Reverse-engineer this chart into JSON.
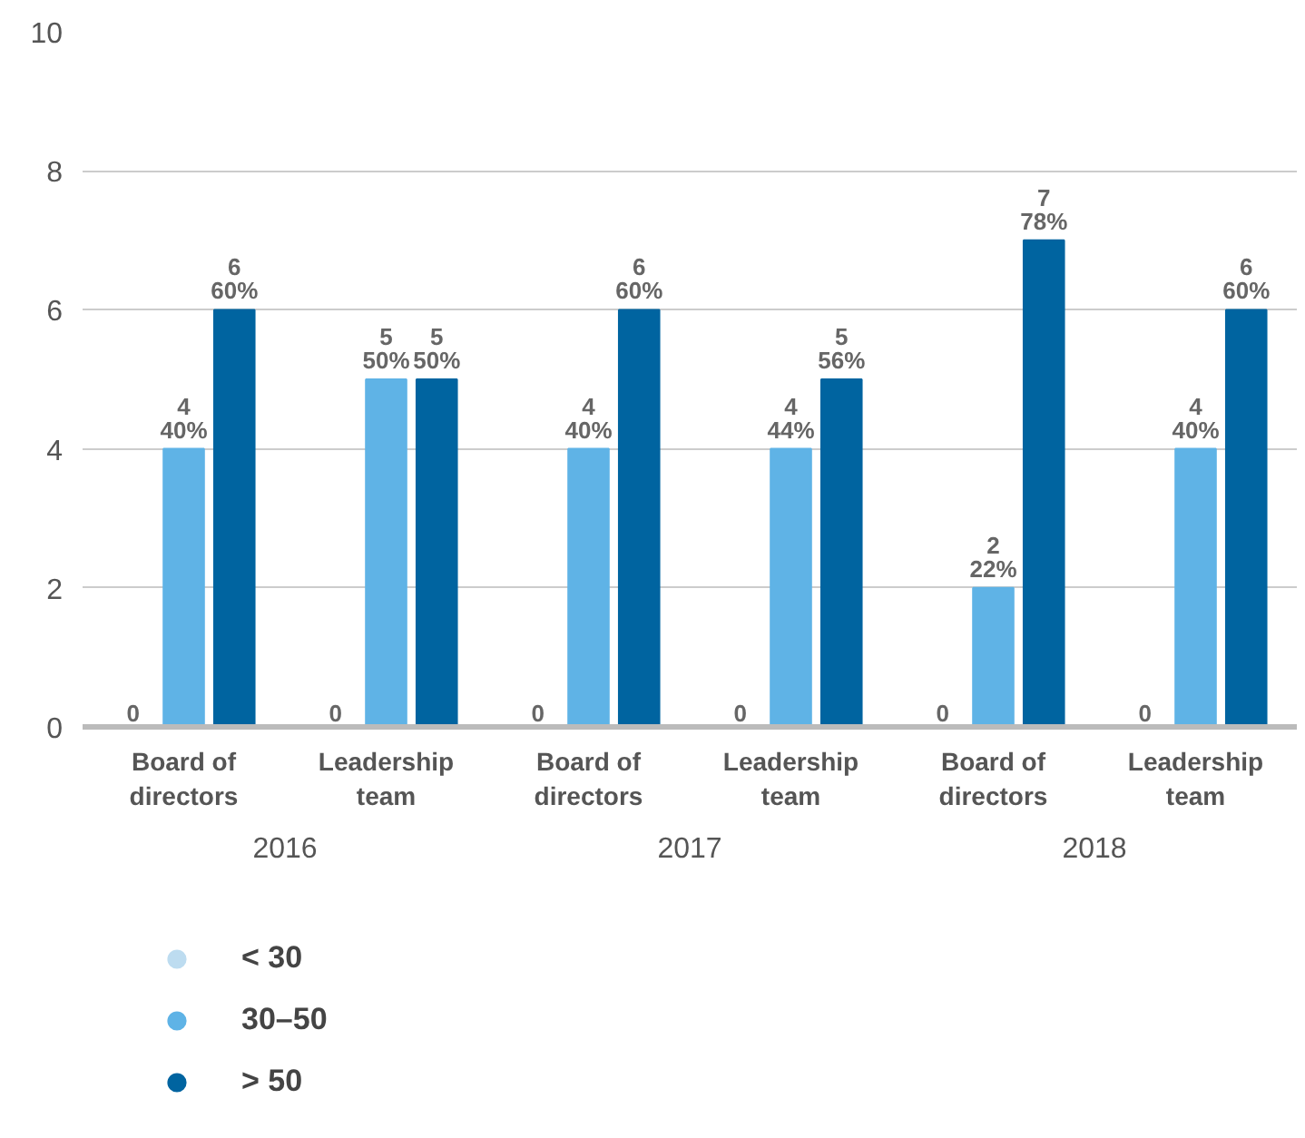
{
  "chart_data": {
    "type": "bar",
    "categories": [
      "Board of\ndirectors",
      "Leadership\nteam",
      "Board of\ndirectors",
      "Leadership\nteam",
      "Board of\ndirectors",
      "Leadership\nteam"
    ],
    "annotations": [
      "2016",
      "2017",
      "2018"
    ],
    "series": [
      {
        "name": "< 30",
        "color": "#bddcf0",
        "values": [
          0,
          0,
          0,
          0,
          0,
          0
        ],
        "value_labels": [
          "0",
          "0",
          "0",
          "0",
          "0",
          "0"
        ]
      },
      {
        "name": "30–50",
        "color": "#5fb3e6",
        "values": [
          4,
          5,
          4,
          4,
          2,
          4
        ],
        "value_labels": [
          "4\n40%",
          "5\n50%",
          "4\n40%",
          "4\n44%",
          "2\n22%",
          "4\n40%"
        ]
      },
      {
        "name": "> 50",
        "color": "#0064a0",
        "values": [
          6,
          5,
          6,
          5,
          7,
          6
        ],
        "value_labels": [
          "6\n60%",
          "5\n50%",
          "6\n60%",
          "5\n56%",
          "7\n78%",
          "6\n60%"
        ]
      }
    ],
    "ylim": [
      0,
      10
    ],
    "yticks": [
      0,
      2,
      4,
      6,
      8,
      10
    ],
    "grid": "y",
    "legend": "bottom"
  }
}
